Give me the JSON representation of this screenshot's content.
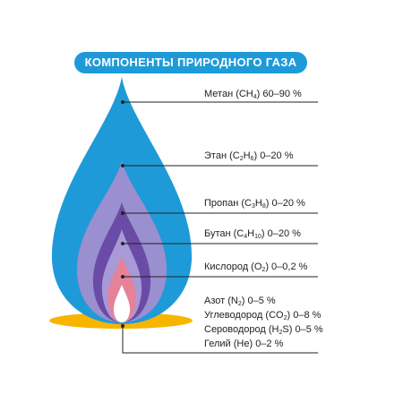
{
  "title": "КОМПОНЕНТЫ ПРИРОДНОГО ГАЗА",
  "colors": {
    "title_bg": "#1f9ad8",
    "flame_outer": "#1f9ad8",
    "flame_lavender": "#9a8fcf",
    "flame_purple": "#6a4ba6",
    "flame_pink": "#e5829a",
    "flame_core": "#ffffff",
    "base": "#f7b500",
    "leader_line": "#222222"
  },
  "components": [
    {
      "name": "Метан (CH",
      "sub": "4",
      "tail": ")",
      "range": "60–90 %"
    },
    {
      "name": "Этан (C",
      "sub": "2",
      "mid": "H",
      "sub2": "6",
      "tail": ")",
      "range": "0–20 %"
    },
    {
      "name": "Пропан (C",
      "sub": "3",
      "mid": "H",
      "sub2": "8",
      "tail": ")",
      "range": "0–20 %"
    },
    {
      "name": "Бутан (C",
      "sub": "4",
      "mid": "H",
      "sub2": "10",
      "tail": ")",
      "range": "0–20 %"
    },
    {
      "name": "Кислород (O",
      "sub": "2",
      "tail": ")",
      "range": "0–0,2 %"
    },
    {
      "name": "Азот (N",
      "sub": "2",
      "tail": ")",
      "range": "0–5 %"
    },
    {
      "name": "Углеводород (CO",
      "sub": "2",
      "tail": ")",
      "range": "0–8 %"
    },
    {
      "name": "Сероводород (H",
      "sub": "2",
      "mid": "S)",
      "range": "0–5 %"
    },
    {
      "name": "Гелий (He)",
      "range": "0–2 %"
    }
  ]
}
